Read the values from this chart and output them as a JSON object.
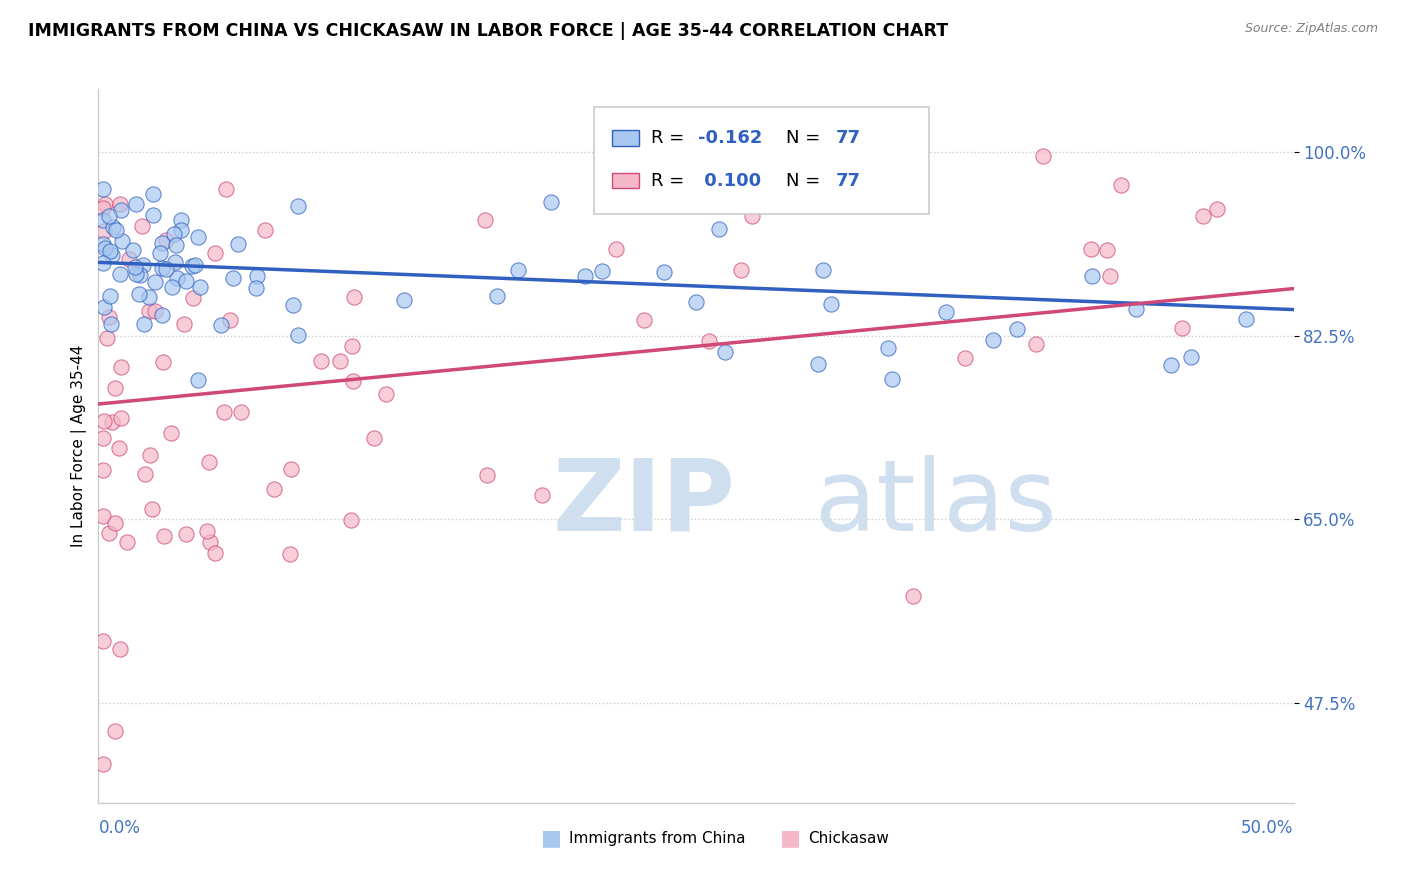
{
  "title": "IMMIGRANTS FROM CHINA VS CHICKASAW IN LABOR FORCE | AGE 35-44 CORRELATION CHART",
  "source": "Source: ZipAtlas.com",
  "ylabel": "In Labor Force | Age 35-44",
  "yticks": [
    0.475,
    0.65,
    0.825,
    1.0
  ],
  "ytick_labels": [
    "47.5%",
    "65.0%",
    "82.5%",
    "100.0%"
  ],
  "xlim": [
    0.0,
    0.5
  ],
  "ylim": [
    0.38,
    1.06
  ],
  "blue_color": "#a8c8f0",
  "pink_color": "#f4b8c8",
  "blue_line_color": "#3060c0",
  "pink_line_color": "#d04878",
  "blue_r": "-0.162",
  "pink_r": "0.100",
  "n": "77",
  "watermark_color": "#d0dff0",
  "grid_color": "#cccccc",
  "axis_label_color": "#4472c4",
  "bottom_legend_labels": [
    "Immigrants from China",
    "Chickasaw"
  ]
}
